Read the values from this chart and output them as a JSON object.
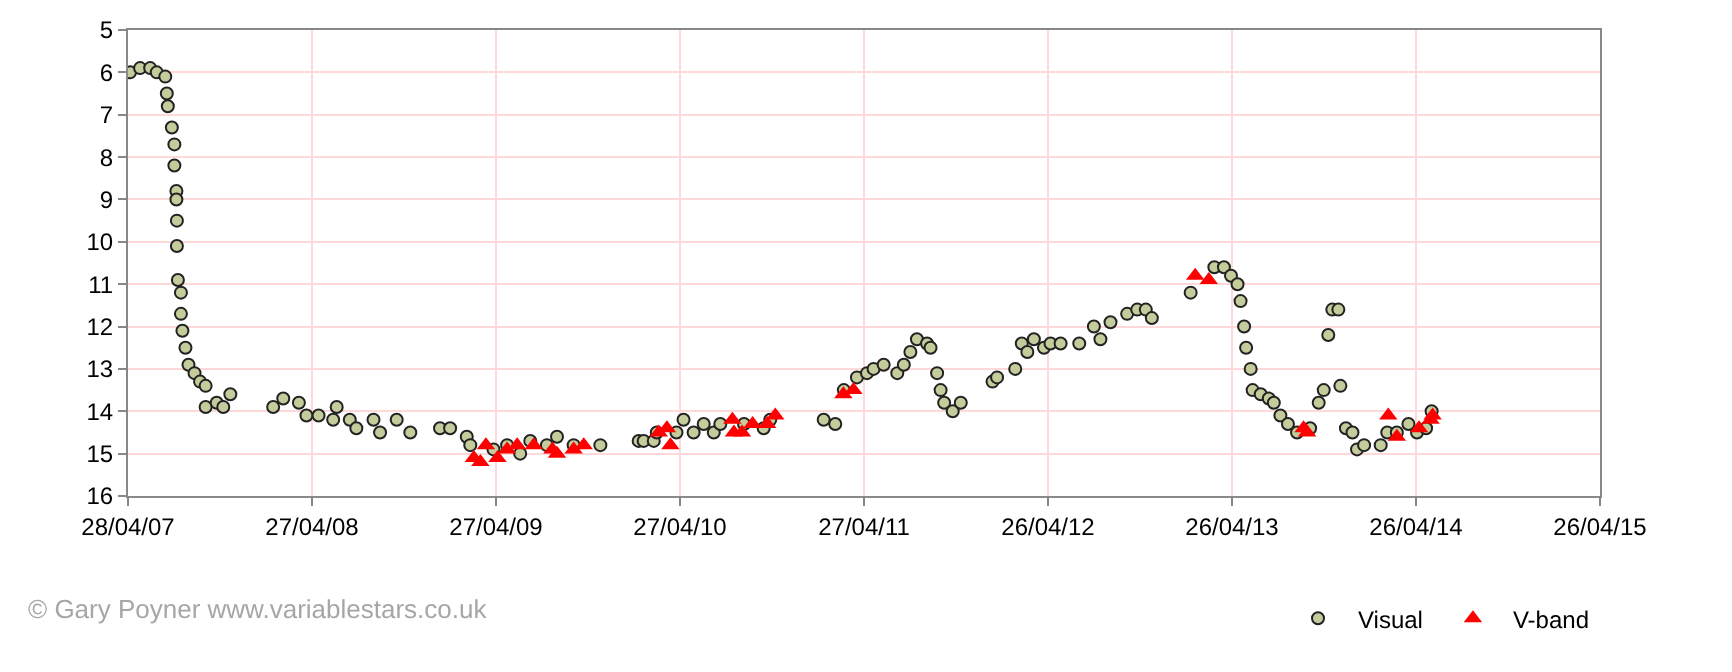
{
  "chart_data": {
    "type": "scatter",
    "xlim": [
      "2007-04-28",
      "2015-04-26"
    ],
    "xticks": [
      {
        "value": "2007-04-28",
        "label": "28/04/07"
      },
      {
        "value": "2008-04-27",
        "label": "27/04/08"
      },
      {
        "value": "2009-04-27",
        "label": "27/04/09"
      },
      {
        "value": "2010-04-27",
        "label": "27/04/10"
      },
      {
        "value": "2011-04-27",
        "label": "27/04/11"
      },
      {
        "value": "2012-04-26",
        "label": "26/04/12"
      },
      {
        "value": "2013-04-26",
        "label": "26/04/13"
      },
      {
        "value": "2014-04-26",
        "label": "26/04/14"
      },
      {
        "value": "2015-04-26",
        "label": "26/04/15"
      }
    ],
    "ylim": [
      16,
      5
    ],
    "yticks": [
      5,
      6,
      7,
      8,
      9,
      10,
      11,
      12,
      13,
      14,
      15,
      16
    ],
    "grid": true,
    "legend": "bottom right",
    "annotations": [
      "© Gary Poyner www.variablestars.co.uk"
    ],
    "series": [
      {
        "name": "Visual",
        "color": "#c4cc9c",
        "marker": "circle",
        "x": [
          "2007-05-02",
          "2007-05-22",
          "2007-06-11",
          "2007-06-24",
          "2007-07-11",
          "2007-07-14",
          "2007-07-16",
          "2007-07-24",
          "2007-07-29",
          "2007-07-29",
          "2007-08-02",
          "2007-08-02",
          "2007-08-03",
          "2007-08-03",
          "2007-08-05",
          "2007-08-11",
          "2007-08-11",
          "2007-08-14",
          "2007-08-20",
          "2007-08-26",
          "2007-09-07",
          "2007-09-18",
          "2007-09-29",
          "2007-09-29",
          "2007-10-21",
          "2007-11-03",
          "2007-11-17",
          "2008-02-10",
          "2008-03-01",
          "2008-04-01",
          "2008-04-16",
          "2008-05-10",
          "2008-06-15",
          "2008-06-08",
          "2008-07-11",
          "2008-07-24",
          "2008-08-27",
          "2008-09-09",
          "2008-10-12",
          "2008-11-08",
          "2009-01-06",
          "2009-01-26",
          "2009-02-28",
          "2009-03-07",
          "2009-04-22",
          "2009-05-19",
          "2009-06-14",
          "2009-07-04",
          "2009-08-06",
          "2009-08-26",
          "2009-09-28",
          "2009-11-20",
          "2010-02-04",
          "2010-02-14",
          "2010-03-06",
          "2010-03-12",
          "2010-04-20",
          "2010-05-04",
          "2010-05-24",
          "2010-06-13",
          "2010-07-03",
          "2010-07-16",
          "2010-09-01",
          "2010-10-10",
          "2010-10-23",
          "2011-02-06",
          "2011-03-01",
          "2011-03-18",
          "2011-04-13",
          "2011-05-03",
          "2011-05-16",
          "2011-06-05",
          "2011-07-02",
          "2011-07-15",
          "2011-07-28",
          "2011-08-10",
          "2011-08-30",
          "2011-09-06",
          "2011-09-19",
          "2011-09-26",
          "2011-10-03",
          "2011-10-20",
          "2011-11-05",
          "2012-01-07",
          "2012-01-16",
          "2012-02-21",
          "2012-03-05",
          "2012-03-16",
          "2012-03-29",
          "2012-04-18",
          "2012-05-01",
          "2012-05-21",
          "2012-06-27",
          "2012-07-26",
          "2012-08-08",
          "2012-08-28",
          "2012-09-30",
          "2012-10-20",
          "2012-11-06",
          "2012-11-18",
          "2013-02-03",
          "2013-03-22",
          "2013-04-10",
          "2013-04-24",
          "2013-05-07",
          "2013-05-13",
          "2013-05-20",
          "2013-05-24",
          "2013-06-02",
          "2013-06-06",
          "2013-06-22",
          "2013-07-08",
          "2013-07-18",
          "2013-07-31",
          "2013-08-15",
          "2013-09-02",
          "2013-09-28",
          "2013-10-15",
          "2013-10-25",
          "2013-11-03",
          "2013-11-11",
          "2013-11-23",
          "2013-11-27",
          "2013-12-08",
          "2013-12-21",
          "2013-12-30",
          "2014-01-13",
          "2014-02-15",
          "2014-02-28",
          "2014-03-19",
          "2014-04-11",
          "2014-04-28",
          "2014-05-16",
          "2014-05-27"
        ],
        "values": [
          6.0,
          5.9,
          5.9,
          6.0,
          6.1,
          6.5,
          6.8,
          7.3,
          7.7,
          8.2,
          8.8,
          9.0,
          9.5,
          10.1,
          10.9,
          11.2,
          11.7,
          12.1,
          12.5,
          12.9,
          13.1,
          13.3,
          13.4,
          13.9,
          13.8,
          13.9,
          13.6,
          13.9,
          13.7,
          13.8,
          14.1,
          14.1,
          13.9,
          14.2,
          14.2,
          14.4,
          14.2,
          14.5,
          14.2,
          14.5,
          14.4,
          14.4,
          14.6,
          14.8,
          14.9,
          14.8,
          15.0,
          14.7,
          14.8,
          14.6,
          14.8,
          14.8,
          14.7,
          14.7,
          14.7,
          14.5,
          14.5,
          14.2,
          14.5,
          14.3,
          14.5,
          14.3,
          14.3,
          14.4,
          14.2,
          14.2,
          14.3,
          13.5,
          13.2,
          13.1,
          13.0,
          12.9,
          13.1,
          12.9,
          12.6,
          12.3,
          12.4,
          12.5,
          13.1,
          13.5,
          13.8,
          14.0,
          13.8,
          13.3,
          13.2,
          13.0,
          12.4,
          12.6,
          12.3,
          12.5,
          12.4,
          12.4,
          12.4,
          12.0,
          12.3,
          11.9,
          11.7,
          11.6,
          11.6,
          11.8,
          11.2,
          10.6,
          10.6,
          10.8,
          11.0,
          11.4,
          12.0,
          12.5,
          13.0,
          13.5,
          13.6,
          13.7,
          13.8,
          14.1,
          14.3,
          14.5,
          14.4,
          13.8,
          13.5,
          12.2,
          11.6,
          11.6,
          13.4,
          14.4,
          14.5,
          14.9,
          14.8,
          14.8,
          14.5,
          14.5,
          14.3,
          14.5,
          14.4,
          14.0
        ]
      },
      {
        "name": "V-band",
        "color": "#ff0000",
        "marker": "triangle",
        "x": [
          "2009-03-14",
          "2009-03-27",
          "2009-04-07",
          "2009-04-30",
          "2009-05-19",
          "2009-06-08",
          "2009-07-11",
          "2009-08-17",
          "2009-08-26",
          "2009-09-28",
          "2009-10-18",
          "2010-03-16",
          "2010-04-01",
          "2010-04-08",
          "2010-08-09",
          "2010-08-12",
          "2010-08-28",
          "2010-09-18",
          "2010-10-17",
          "2010-11-02",
          "2011-03-17",
          "2011-04-06",
          "2013-02-12",
          "2013-03-11",
          "2013-09-15",
          "2013-09-22",
          "2014-03-02",
          "2014-03-19",
          "2014-05-02",
          "2014-05-25",
          "2014-05-29"
        ],
        "values": [
          15.1,
          15.2,
          14.8,
          15.1,
          14.9,
          14.8,
          14.8,
          14.9,
          15.0,
          14.9,
          14.8,
          14.5,
          14.4,
          14.8,
          14.2,
          14.5,
          14.5,
          14.3,
          14.3,
          14.1,
          13.6,
          13.5,
          10.8,
          10.9,
          14.4,
          14.5,
          14.1,
          14.6,
          14.4,
          14.2,
          14.1
        ]
      }
    ]
  }
}
